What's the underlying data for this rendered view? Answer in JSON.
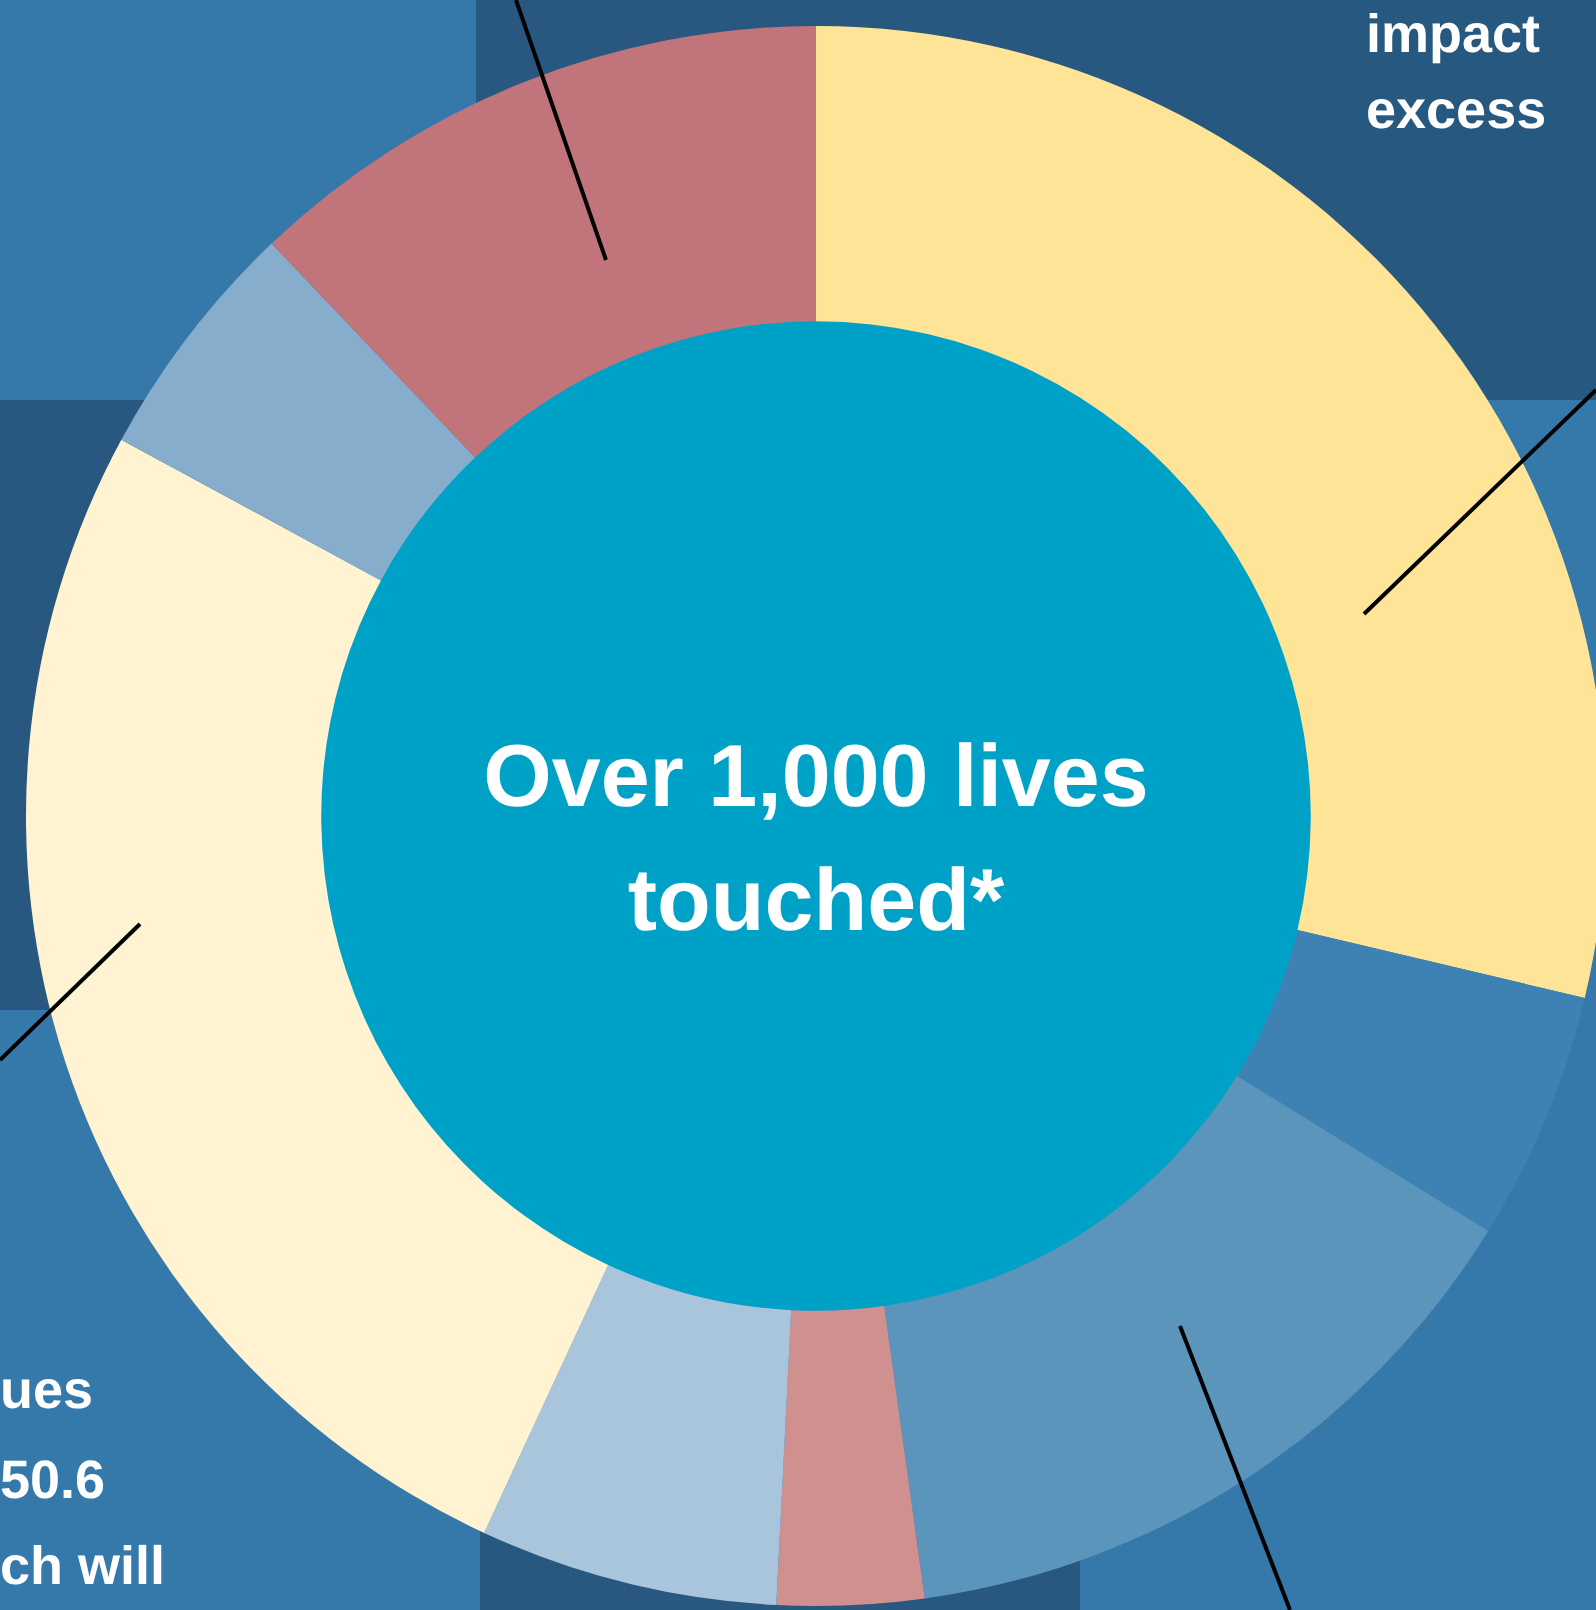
{
  "chart_data": {
    "type": "donut",
    "title": "Over 1,000 lives touched*",
    "categories": [
      null,
      null,
      null,
      null,
      null,
      null,
      null,
      null
    ],
    "values": [
      28.7,
      5.1,
      14,
      3,
      6.1,
      26,
      5,
      12.1
    ],
    "colors": [
      "#fee497",
      "#3e82b4",
      "#5b95bb",
      "#d09090",
      "#a8c5dc",
      "#fff3d1",
      "#86adcb",
      "#c1747a"
    ],
    "annotations": [
      "impact",
      "excess",
      "ues",
      "50.6",
      "ch will"
    ]
  }
}
